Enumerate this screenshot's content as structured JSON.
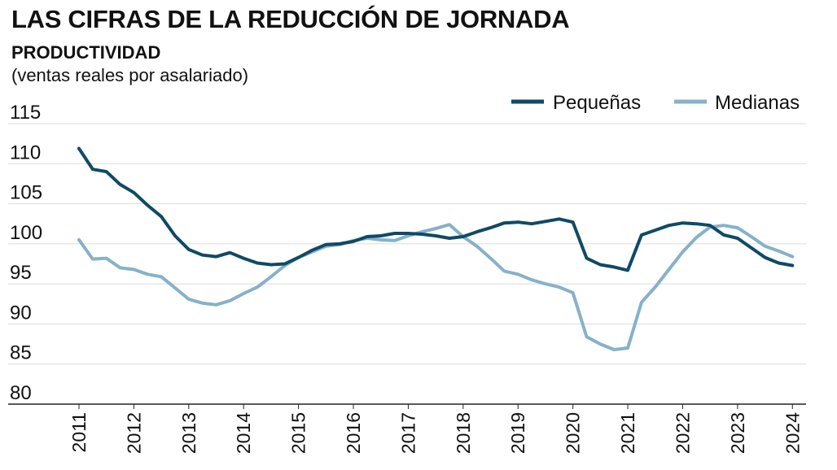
{
  "header": {
    "title": "LAS CIFRAS DE LA REDUCCIÓN DE JORNADA",
    "subtitle": "PRODUCTIVIDAD",
    "units": "(ventas reales por asalariado)"
  },
  "colors": {
    "pequenas": "#0f4a66",
    "medianas": "#86b1c9",
    "grid": "#dcdcdc",
    "axis": "#222222"
  },
  "chart_data": {
    "type": "line",
    "title": "PRODUCTIVIDAD",
    "ylim": [
      80,
      115
    ],
    "yticks": [
      80,
      85,
      90,
      95,
      100,
      105,
      110,
      115
    ],
    "xlim": [
      2011,
      2024.1
    ],
    "xticks": [
      "2011",
      "2012",
      "2013",
      "2014",
      "2015",
      "2016",
      "2017",
      "2018",
      "2019",
      "2020",
      "2021",
      "2022",
      "2023",
      "2024"
    ],
    "grid": "horizontal",
    "legend_position": "top-right",
    "series": [
      {
        "name": "Pequeñas",
        "color": "#0f4a66",
        "x": [
          2011.0,
          2011.25,
          2011.5,
          2011.75,
          2012.0,
          2012.25,
          2012.5,
          2012.75,
          2013.0,
          2013.25,
          2013.5,
          2013.75,
          2014.0,
          2014.25,
          2014.5,
          2014.75,
          2015.0,
          2015.25,
          2015.5,
          2015.75,
          2016.0,
          2016.25,
          2016.5,
          2016.75,
          2017.0,
          2017.25,
          2017.5,
          2017.75,
          2018.0,
          2018.25,
          2018.5,
          2018.75,
          2019.0,
          2019.25,
          2019.5,
          2019.75,
          2020.0,
          2020.25,
          2020.5,
          2020.75,
          2021.0,
          2021.25,
          2021.5,
          2021.75,
          2022.0,
          2022.25,
          2022.5,
          2022.75,
          2023.0,
          2023.25,
          2023.5,
          2023.75,
          2024.0
        ],
        "values": [
          111.9,
          109.3,
          109.0,
          107.4,
          106.4,
          104.8,
          103.4,
          101.0,
          99.3,
          98.6,
          98.4,
          98.9,
          98.2,
          97.6,
          97.4,
          97.5,
          98.3,
          99.2,
          99.9,
          100.0,
          100.3,
          100.9,
          101.0,
          101.3,
          101.3,
          101.2,
          101.0,
          100.7,
          100.9,
          101.5,
          102.0,
          102.6,
          102.7,
          102.5,
          102.8,
          103.1,
          102.7,
          98.2,
          97.4,
          97.1,
          96.7,
          101.1,
          101.7,
          102.3,
          102.6,
          102.5,
          102.3,
          101.1,
          100.7,
          99.5,
          98.3,
          97.6,
          97.3
        ]
      },
      {
        "name": "Medianas",
        "color": "#86b1c9",
        "x": [
          2011.0,
          2011.25,
          2011.5,
          2011.75,
          2012.0,
          2012.25,
          2012.5,
          2012.75,
          2013.0,
          2013.25,
          2013.5,
          2013.75,
          2014.0,
          2014.25,
          2014.5,
          2014.75,
          2015.0,
          2015.25,
          2015.5,
          2015.75,
          2016.0,
          2016.25,
          2016.5,
          2016.75,
          2017.0,
          2017.25,
          2017.5,
          2017.75,
          2018.0,
          2018.25,
          2018.5,
          2018.75,
          2019.0,
          2019.25,
          2019.5,
          2019.75,
          2020.0,
          2020.25,
          2020.5,
          2020.75,
          2021.0,
          2021.25,
          2021.5,
          2021.75,
          2022.0,
          2022.25,
          2022.5,
          2022.75,
          2023.0,
          2023.25,
          2023.5,
          2023.75,
          2024.0
        ],
        "values": [
          100.5,
          98.1,
          98.2,
          97.0,
          96.8,
          96.2,
          95.9,
          94.5,
          93.1,
          92.6,
          92.4,
          92.9,
          93.8,
          94.6,
          95.9,
          97.3,
          98.3,
          99.0,
          99.7,
          99.9,
          100.4,
          100.7,
          100.5,
          100.4,
          101.0,
          101.5,
          101.9,
          102.4,
          100.9,
          99.7,
          98.2,
          96.6,
          96.2,
          95.5,
          95.0,
          94.6,
          93.9,
          88.4,
          87.5,
          86.8,
          87.0,
          92.7,
          94.6,
          96.8,
          99.0,
          100.8,
          102.1,
          102.3,
          102.0,
          100.9,
          99.7,
          99.1,
          98.4
        ]
      }
    ]
  }
}
